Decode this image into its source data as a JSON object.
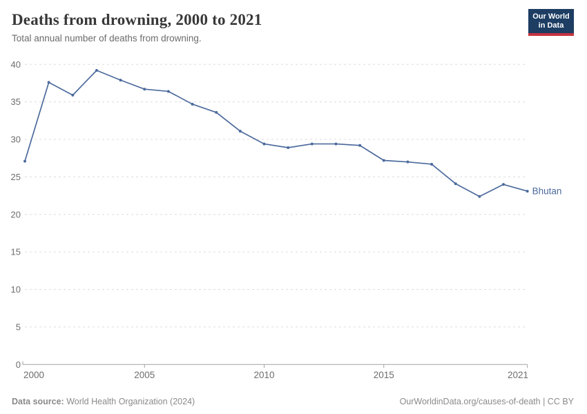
{
  "header": {
    "title": "Deaths from drowning, 2000 to 2021",
    "subtitle": "Total annual number of deaths from drowning.",
    "logo": {
      "line1": "Our World",
      "line2": "in Data"
    }
  },
  "chart_data": {
    "type": "line",
    "title": "Deaths from drowning, 2000 to 2021",
    "xlabel": "",
    "ylabel": "",
    "x": [
      2000,
      2001,
      2002,
      2003,
      2004,
      2005,
      2006,
      2007,
      2008,
      2009,
      2010,
      2011,
      2012,
      2013,
      2014,
      2015,
      2016,
      2017,
      2018,
      2019,
      2020,
      2021
    ],
    "series": [
      {
        "name": "Bhutan",
        "values": [
          27.1,
          37.6,
          35.9,
          39.2,
          37.9,
          36.7,
          36.4,
          34.7,
          33.6,
          31.1,
          29.4,
          28.9,
          29.4,
          29.4,
          29.2,
          27.2,
          27.0,
          26.7,
          24.1,
          22.4,
          24.0,
          23.1
        ]
      }
    ],
    "ylim": [
      0,
      40
    ],
    "yticks": [
      0,
      5,
      10,
      15,
      20,
      25,
      30,
      35,
      40
    ],
    "xticks": [
      2000,
      2005,
      2010,
      2015,
      2021
    ],
    "grid": "horizontal-dashed",
    "legend_position": "end-of-line-label"
  },
  "footer": {
    "source_label": "Data source:",
    "source_value": " World Health Organization (2024)",
    "link": "OurWorldinData.org/causes-of-death | CC BY"
  },
  "colors": {
    "line": "#4c6a9c",
    "entity_label": "#4c6a9c",
    "grid": "#dcdcdc",
    "axis": "#a1a1a1",
    "tick_label": "#6d6d6d",
    "title": "#383838",
    "subtitle": "#6b6b6b",
    "footer_text": "#8a8a8a",
    "logo_background": "#1d3d63",
    "logo_bar": "#c5333f",
    "background": "#ffffff"
  }
}
